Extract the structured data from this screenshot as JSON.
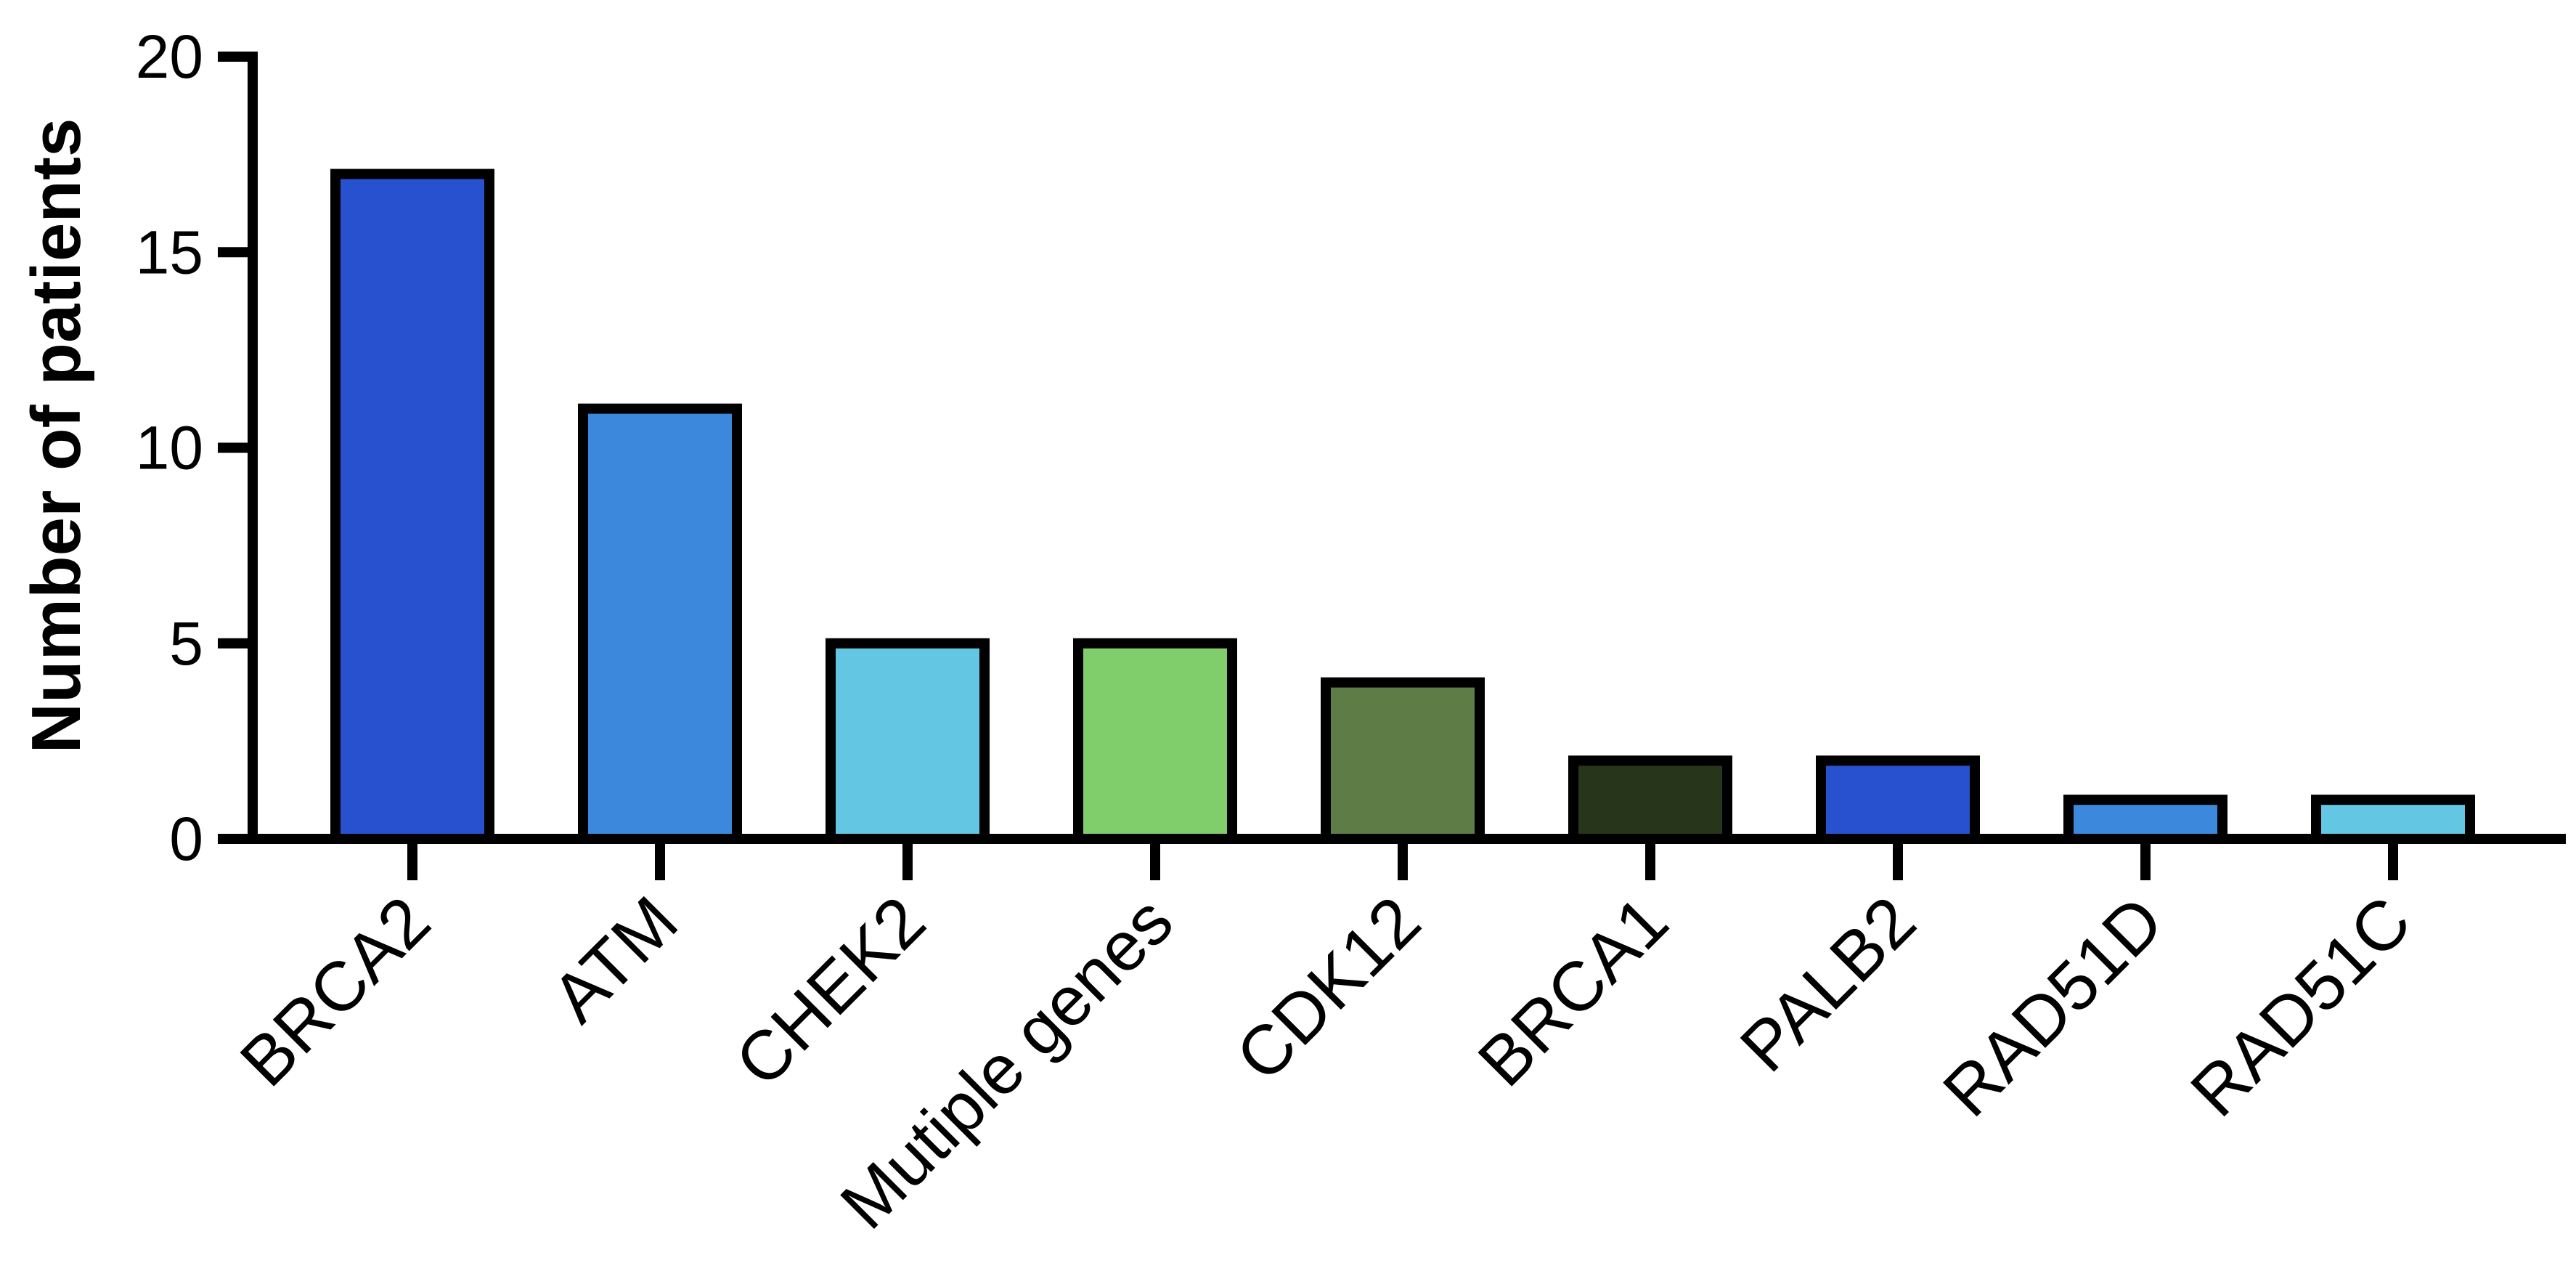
{
  "chart_data": {
    "type": "bar",
    "title": "",
    "xlabel": "",
    "ylabel": "Number of patients",
    "ylim": [
      0,
      20
    ],
    "yticks": [
      0,
      5,
      10,
      15,
      20
    ],
    "grid": false,
    "legend": "none",
    "categories": [
      "BRCA2",
      "ATM",
      "CHEK2",
      "Mutiple genes",
      "CDK12",
      "BRCA1",
      "PALB2",
      "RAD51D",
      "RAD51C"
    ],
    "values": [
      17,
      11,
      5,
      5,
      4,
      2,
      2,
      1,
      1
    ],
    "colors": [
      "#2851CF",
      "#3C88DD",
      "#63C6E2",
      "#80CD6B",
      "#5E7C46",
      "#27351A",
      "#2851CF",
      "#3C88DD",
      "#63C6E2"
    ],
    "edge_color": "#000000"
  }
}
